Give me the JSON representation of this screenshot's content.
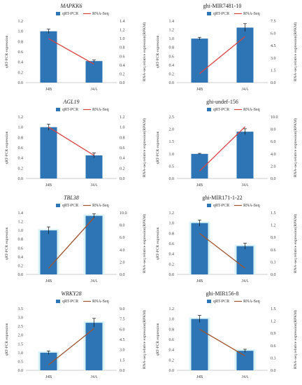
{
  "legend": {
    "qrt": "qRT-PCR",
    "rnaseq": "RNA-Seq"
  },
  "axis_labels": {
    "left": "qRT-PCR expression",
    "right": "RNA-seq relative expression(RPKM)"
  },
  "colors": {
    "bar": "#2E75B6",
    "line_red": "#D9413F",
    "line_brown": "#A0522D",
    "shade": "#D9F3F7"
  },
  "chart_data": [
    {
      "type": "bar",
      "title": "MAPKK6",
      "italic": true,
      "categories": [
        "J4B",
        "J4A"
      ],
      "series": [
        {
          "name": "qRT-PCR",
          "values": [
            1.0,
            0.42
          ],
          "errors": [
            0.04,
            0.02
          ],
          "axis": "left"
        },
        {
          "name": "RNA-Seq",
          "values": [
            1.0,
            0.42
          ],
          "axis": "right"
        }
      ],
      "left_axis": {
        "range": [
          0,
          1.2
        ],
        "ticks": [
          "0.0",
          "0.2",
          "0.4",
          "0.6",
          "0.8",
          "1.0",
          "1.2"
        ]
      },
      "right_axis": {
        "range": [
          0,
          1.4
        ],
        "ticks": [
          "0.0",
          "0.2",
          "0.4",
          "0.6",
          "0.8",
          "1.0",
          "1.2",
          "1.4"
        ]
      },
      "line_color": "red",
      "legend_box": false,
      "shaded": false
    },
    {
      "type": "bar",
      "title": "ghi-MIR7481-10",
      "italic": false,
      "categories": [
        "J4B",
        "J4A"
      ],
      "series": [
        {
          "name": "qRT-PCR",
          "values": [
            1.0,
            1.25
          ],
          "errors": [
            0.03,
            0.09
          ],
          "axis": "left"
        },
        {
          "name": "RNA-Seq",
          "values": [
            1.1,
            5.6
          ],
          "axis": "right"
        }
      ],
      "left_axis": {
        "range": [
          0,
          1.4
        ],
        "ticks": [
          "0.0",
          "0.2",
          "0.4",
          "0.6",
          "0.8",
          "1.0",
          "1.2",
          "1.4"
        ]
      },
      "right_axis": {
        "range": [
          0,
          7.5
        ],
        "ticks": [
          "0.0",
          "1.5",
          "3.0",
          "4.5",
          "6.0",
          "7.5"
        ]
      },
      "line_color": "red",
      "legend_box": false,
      "shaded": false
    },
    {
      "type": "bar",
      "title": "AGL19",
      "italic": true,
      "categories": [
        "J4B",
        "J4A"
      ],
      "series": [
        {
          "name": "qRT-PCR",
          "values": [
            1.0,
            0.45
          ],
          "errors": [
            0.06,
            0.05
          ],
          "axis": "left"
        },
        {
          "name": "RNA-Seq",
          "values": [
            1.0,
            0.45
          ],
          "axis": "right"
        }
      ],
      "left_axis": {
        "range": [
          0,
          1.2
        ],
        "ticks": [
          "0.0",
          "0.2",
          "0.4",
          "0.6",
          "0.8",
          "1.0",
          "1.2"
        ]
      },
      "right_axis": {
        "range": [
          0,
          1.2
        ],
        "ticks": [
          "0.0",
          "0.2",
          "0.4",
          "0.6",
          "0.8",
          "1.0",
          "1.2"
        ]
      },
      "line_color": "red",
      "legend_box": false,
      "shaded": false
    },
    {
      "type": "bar",
      "title": "ghi-undef-156",
      "italic": false,
      "categories": [
        "J4B",
        "J4A"
      ],
      "series": [
        {
          "name": "qRT-PCR",
          "values": [
            1.0,
            1.9
          ],
          "errors": [
            0.02,
            0.12
          ],
          "axis": "left"
        },
        {
          "name": "RNA-Seq",
          "values": [
            1.2,
            8.4
          ],
          "axis": "right"
        }
      ],
      "left_axis": {
        "range": [
          0,
          2.5
        ],
        "ticks": [
          "0.0",
          "0.5",
          "1.0",
          "1.5",
          "2.0",
          "2.5"
        ]
      },
      "right_axis": {
        "range": [
          0,
          10.0
        ],
        "ticks": [
          "0.0",
          "2.0",
          "4.0",
          "6.0",
          "8.0",
          "10.0"
        ]
      },
      "line_color": "red",
      "legend_box": false,
      "shaded": false
    },
    {
      "type": "bar",
      "title": "TBL38",
      "italic": true,
      "categories": [
        "J4B",
        "J4A"
      ],
      "series": [
        {
          "name": "qRT-PCR",
          "values": [
            1.0,
            1.33
          ],
          "errors": [
            0.08,
            0.05
          ],
          "axis": "left"
        },
        {
          "name": "RNA-Seq",
          "values": [
            1.0,
            9.2
          ],
          "axis": "right"
        }
      ],
      "left_axis": {
        "range": [
          0,
          1.4
        ],
        "ticks": [
          "0.0",
          "0.2",
          "0.4",
          "0.6",
          "0.8",
          "1.0",
          "1.2",
          "1.4"
        ]
      },
      "right_axis": {
        "range": [
          0,
          10.0
        ],
        "ticks": [
          "0.0",
          "2.0",
          "4.0",
          "6.0",
          "8.0",
          "10.0"
        ]
      },
      "line_color": "brown",
      "legend_box": true,
      "shaded": true
    },
    {
      "type": "bar",
      "title": "ghi-MIR171-1-22",
      "italic": false,
      "categories": [
        "J4B",
        "J4A"
      ],
      "series": [
        {
          "name": "qRT-PCR",
          "values": [
            1.0,
            0.55
          ],
          "errors": [
            0.06,
            0.06
          ],
          "axis": "left"
        },
        {
          "name": "RNA-Seq",
          "values": [
            1.0,
            0.15
          ],
          "axis": "right"
        }
      ],
      "left_axis": {
        "range": [
          0,
          1.2
        ],
        "ticks": [
          "0.0",
          "0.2",
          "0.4",
          "0.6",
          "0.8",
          "1.0",
          "1.2"
        ]
      },
      "right_axis": {
        "range": [
          0,
          1.5
        ],
        "ticks": [
          "0.0",
          "0.3",
          "0.6",
          "0.9",
          "1.2",
          "1.5"
        ]
      },
      "line_color": "brown",
      "legend_box": true,
      "shaded": true
    },
    {
      "type": "bar",
      "title": "WRKY28",
      "italic": true,
      "categories": [
        "J4B",
        "J4A"
      ],
      "series": [
        {
          "name": "qRT-PCR",
          "values": [
            1.0,
            2.7
          ],
          "errors": [
            0.1,
            0.25
          ],
          "axis": "left"
        },
        {
          "name": "RNA-Seq",
          "values": [
            0.8,
            6.1
          ],
          "axis": "right"
        }
      ],
      "left_axis": {
        "range": [
          0,
          3.5
        ],
        "ticks": [
          "0.0",
          "0.5",
          "1.0",
          "1.5",
          "2.0",
          "2.5",
          "3.0",
          "3.5"
        ]
      },
      "right_axis": {
        "range": [
          0,
          9.0
        ],
        "ticks": [
          "0.0",
          "1.5",
          "3.0",
          "4.5",
          "6.0",
          "7.5",
          "9.0"
        ]
      },
      "line_color": "brown",
      "legend_box": true,
      "shaded": true
    },
    {
      "type": "bar",
      "title": "ghi-MIR156-8",
      "italic": false,
      "categories": [
        "J4B",
        "J4A"
      ],
      "series": [
        {
          "name": "qRT-PCR",
          "values": [
            1.0,
            0.38
          ],
          "errors": [
            0.07,
            0.03
          ],
          "axis": "left"
        },
        {
          "name": "RNA-Seq",
          "values": [
            1.0,
            0.35
          ],
          "axis": "right"
        }
      ],
      "left_axis": {
        "range": [
          0,
          1.2
        ],
        "ticks": [
          "0.0",
          "0.2",
          "0.4",
          "0.6",
          "0.8",
          "1.0",
          "1.2"
        ]
      },
      "right_axis": {
        "range": [
          0,
          1.5
        ],
        "ticks": [
          "0.0",
          "0.3",
          "0.6",
          "0.9",
          "1.2",
          "1.5"
        ]
      },
      "line_color": "brown",
      "legend_box": true,
      "shaded": true
    }
  ]
}
